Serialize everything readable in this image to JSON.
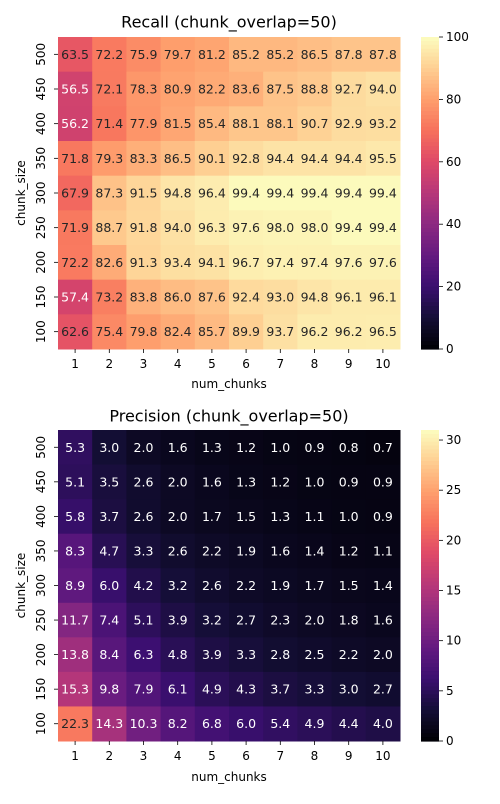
{
  "chart_data": [
    {
      "type": "heatmap",
      "title": "Recall (chunk_overlap=50)",
      "xlabel": "num_chunks",
      "ylabel": "chunk_size",
      "x": [
        "1",
        "2",
        "3",
        "4",
        "5",
        "6",
        "7",
        "8",
        "9",
        "10"
      ],
      "y": [
        "500",
        "450",
        "400",
        "350",
        "300",
        "250",
        "200",
        "150",
        "100"
      ],
      "values": [
        [
          63.5,
          72.2,
          75.9,
          79.7,
          81.2,
          85.2,
          85.2,
          86.5,
          87.8,
          87.8
        ],
        [
          56.5,
          72.1,
          78.3,
          80.9,
          82.2,
          83.6,
          87.5,
          88.8,
          92.7,
          94.0
        ],
        [
          56.2,
          71.4,
          77.9,
          81.5,
          85.4,
          88.1,
          88.1,
          90.7,
          92.9,
          93.2
        ],
        [
          71.8,
          79.3,
          83.3,
          86.5,
          90.1,
          92.8,
          94.4,
          94.4,
          94.4,
          95.5
        ],
        [
          67.9,
          87.3,
          91.5,
          94.8,
          96.4,
          99.4,
          99.4,
          99.4,
          99.4,
          99.4
        ],
        [
          71.9,
          88.7,
          91.8,
          94.0,
          96.3,
          97.6,
          98.0,
          98.0,
          99.4,
          99.4
        ],
        [
          72.2,
          82.6,
          91.3,
          93.4,
          94.1,
          96.7,
          97.4,
          97.4,
          97.6,
          97.6
        ],
        [
          57.4,
          73.2,
          83.8,
          86.0,
          87.6,
          92.4,
          93.0,
          94.8,
          96.1,
          96.1
        ],
        [
          62.6,
          75.4,
          79.8,
          82.4,
          85.7,
          89.9,
          93.7,
          96.2,
          96.2,
          96.5
        ]
      ],
      "colorbar": {
        "min": 0,
        "max": 100,
        "ticks": [
          "0",
          "20",
          "40",
          "60",
          "80",
          "100"
        ]
      },
      "colormap": "magma"
    },
    {
      "type": "heatmap",
      "title": "Precision (chunk_overlap=50)",
      "xlabel": "num_chunks",
      "ylabel": "chunk_size",
      "x": [
        "1",
        "2",
        "3",
        "4",
        "5",
        "6",
        "7",
        "8",
        "9",
        "10"
      ],
      "y": [
        "500",
        "450",
        "400",
        "350",
        "300",
        "250",
        "200",
        "150",
        "100"
      ],
      "values": [
        [
          5.3,
          3.0,
          2.0,
          1.6,
          1.3,
          1.2,
          1.0,
          0.9,
          0.8,
          0.7
        ],
        [
          5.1,
          3.5,
          2.6,
          2.0,
          1.6,
          1.3,
          1.2,
          1.0,
          0.9,
          0.9
        ],
        [
          5.8,
          3.7,
          2.6,
          2.0,
          1.7,
          1.5,
          1.3,
          1.1,
          1.0,
          0.9
        ],
        [
          8.3,
          4.7,
          3.3,
          2.6,
          2.2,
          1.9,
          1.6,
          1.4,
          1.2,
          1.1
        ],
        [
          8.9,
          6.0,
          4.2,
          3.2,
          2.6,
          2.2,
          1.9,
          1.7,
          1.5,
          1.4
        ],
        [
          11.7,
          7.4,
          5.1,
          3.9,
          3.2,
          2.7,
          2.3,
          2.0,
          1.8,
          1.6
        ],
        [
          13.8,
          8.4,
          6.3,
          4.8,
          3.9,
          3.3,
          2.8,
          2.5,
          2.2,
          2.0
        ],
        [
          15.3,
          9.8,
          7.9,
          6.1,
          4.9,
          4.3,
          3.7,
          3.3,
          3.0,
          2.7
        ],
        [
          22.3,
          14.3,
          10.3,
          8.2,
          6.8,
          6.0,
          5.4,
          4.9,
          4.4,
          4.0
        ]
      ],
      "colorbar": {
        "min": 0,
        "max": 31,
        "ticks": [
          "0",
          "5",
          "10",
          "15",
          "20",
          "25",
          "30"
        ]
      },
      "colormap": "magma"
    }
  ]
}
